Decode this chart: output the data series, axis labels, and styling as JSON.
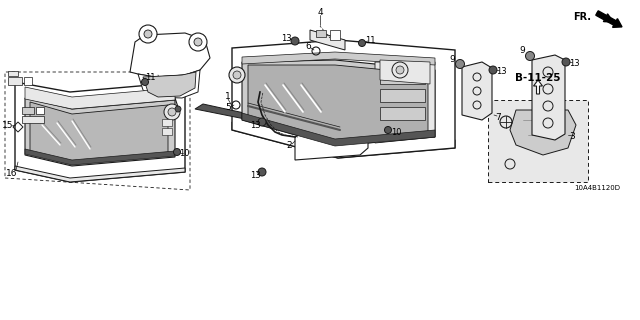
{
  "background_color": "#ffffff",
  "diagram_id": "10A4B1120D",
  "ref_label": "B-11-25",
  "fr_label": "FR.",
  "figsize": [
    6.4,
    3.2
  ],
  "dpi": 100,
  "line_color": "#1a1a1a",
  "gray_dark": "#555555",
  "gray_mid": "#888888",
  "gray_light": "#cccccc",
  "gray_lighter": "#e8e8e8"
}
